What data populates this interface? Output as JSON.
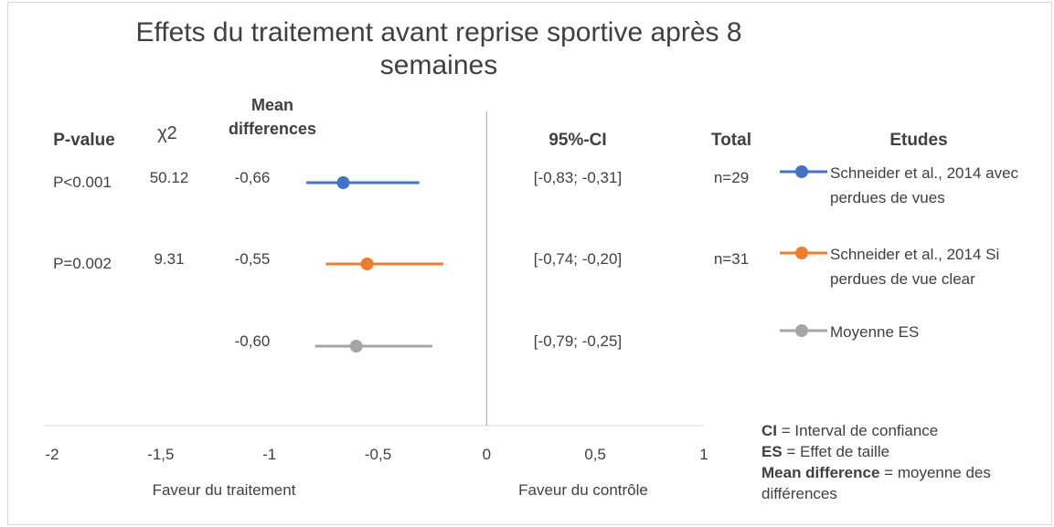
{
  "chart_data": {
    "type": "forest",
    "title": "Effets du traitement avant reprise sportive après 8 semaines",
    "column_headers": [
      "P-value",
      "χ2",
      "Mean differences",
      "95%-CI",
      "Total",
      "Etudes"
    ],
    "series": [
      {
        "name": "Schneider et al., 2014 avec perdues de vues",
        "color": "#4472c4",
        "values": [
          -0.66
        ],
        "value_labels": [
          "-0,66"
        ],
        "ci": [
          -0.83,
          -0.31
        ],
        "ci_label": "[-0,83; -0,31]",
        "p_value": "P<0.001",
        "chi2": 50.12,
        "total": "n=29"
      },
      {
        "name": "Schneider et al., 2014 Si perdues de vue clear",
        "color": "#ed7d31",
        "values": [
          -0.55
        ],
        "value_labels": [
          "-0,55"
        ],
        "ci": [
          -0.74,
          -0.2
        ],
        "ci_label": "[-0,74; -0,20]",
        "p_value": "P=0.002",
        "chi2": 9.31,
        "total": "n=31"
      },
      {
        "name": "Moyenne ES",
        "color": "#a5a5a5",
        "values": [
          -0.6
        ],
        "value_labels": [
          "-0,60"
        ],
        "ci": [
          -0.79,
          -0.25
        ],
        "ci_label": "[-0,79; -0,25]"
      }
    ],
    "xlim": [
      -2,
      1
    ],
    "xticks": [
      -2,
      {
        "value": -1.5,
        "label": "-1,5"
      },
      -1,
      {
        "value": -0.5,
        "label": "-0,5"
      },
      0,
      {
        "value": 0.5,
        "label": "0,5"
      },
      1
    ],
    "x_labels": [
      "Faveur du traitement",
      "Faveur du contrôle"
    ],
    "notes": [
      {
        "term": "CI",
        "text": "= Interval de confiance"
      },
      {
        "term": "ES",
        "text": "=  Effet de taille"
      },
      {
        "term": "Mean difference",
        "text": "= moyenne des différences"
      }
    ]
  }
}
